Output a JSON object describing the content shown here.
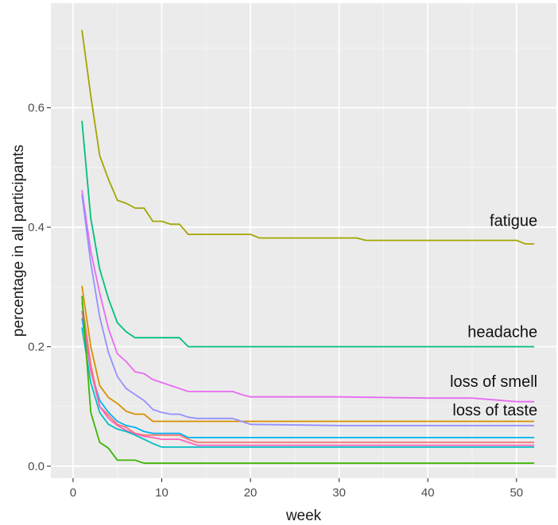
{
  "chart_data": {
    "type": "line",
    "title": "",
    "xlabel": "week",
    "ylabel": "percentage in all participants",
    "xlim": [
      -2.5,
      54.5
    ],
    "ylim": [
      -0.02,
      0.775
    ],
    "x_ticks": [
      0,
      10,
      20,
      30,
      40,
      50
    ],
    "y_ticks": [
      0.0,
      0.2,
      0.4,
      0.6
    ],
    "x_tick_labels": [
      "0",
      "10",
      "20",
      "30",
      "40",
      "50"
    ],
    "y_tick_labels": [
      "0.0",
      "0.2",
      "0.4",
      "0.6"
    ],
    "grid": true,
    "legend": "none",
    "series": [
      {
        "name": "fatigue",
        "color": "#a3a500",
        "x": [
          1,
          2,
          3,
          4,
          5,
          6,
          7,
          8,
          9,
          10,
          11,
          12,
          13,
          14,
          15,
          16,
          17,
          18,
          19,
          20,
          21,
          25,
          30,
          32,
          33,
          40,
          45,
          50,
          51,
          52
        ],
        "y": [
          0.73,
          0.62,
          0.52,
          0.48,
          0.445,
          0.44,
          0.432,
          0.432,
          0.41,
          0.41,
          0.405,
          0.405,
          0.388,
          0.388,
          0.388,
          0.388,
          0.388,
          0.388,
          0.388,
          0.388,
          0.382,
          0.382,
          0.382,
          0.382,
          0.378,
          0.378,
          0.378,
          0.378,
          0.372,
          0.372
        ]
      },
      {
        "name": "headache",
        "color": "#00bf7d",
        "x": [
          1,
          2,
          3,
          4,
          5,
          6,
          7,
          8,
          9,
          10,
          11,
          12,
          13,
          14,
          20,
          30,
          40,
          52
        ],
        "y": [
          0.578,
          0.415,
          0.33,
          0.28,
          0.24,
          0.225,
          0.215,
          0.215,
          0.215,
          0.215,
          0.215,
          0.215,
          0.2,
          0.2,
          0.2,
          0.2,
          0.2,
          0.2
        ]
      },
      {
        "name": "loss of smell",
        "color": "#e76bf3",
        "x": [
          1,
          2,
          3,
          4,
          5,
          6,
          7,
          8,
          9,
          10,
          11,
          12,
          13,
          14,
          15,
          18,
          19,
          20,
          25,
          30,
          40,
          45,
          50,
          52
        ],
        "y": [
          0.462,
          0.36,
          0.29,
          0.23,
          0.188,
          0.175,
          0.158,
          0.155,
          0.145,
          0.14,
          0.135,
          0.13,
          0.125,
          0.125,
          0.125,
          0.125,
          0.12,
          0.116,
          0.116,
          0.116,
          0.114,
          0.114,
          0.108,
          0.108
        ]
      },
      {
        "name": "loss of taste",
        "color": "#d89000",
        "x": [
          1,
          2,
          3,
          4,
          5,
          6,
          7,
          8,
          9,
          10,
          20,
          30,
          40,
          52
        ],
        "y": [
          0.302,
          0.2,
          0.135,
          0.115,
          0.105,
          0.092,
          0.087,
          0.087,
          0.075,
          0.075,
          0.075,
          0.075,
          0.075,
          0.075
        ]
      },
      {
        "name": "",
        "color": "#9590ff",
        "x": [
          1,
          2,
          3,
          4,
          5,
          6,
          7,
          8,
          9,
          10,
          11,
          12,
          13,
          14,
          18,
          19,
          20,
          30,
          40,
          52
        ],
        "y": [
          0.455,
          0.34,
          0.25,
          0.19,
          0.15,
          0.13,
          0.12,
          0.11,
          0.095,
          0.09,
          0.087,
          0.087,
          0.082,
          0.08,
          0.08,
          0.075,
          0.07,
          0.068,
          0.068,
          0.068
        ]
      },
      {
        "name": "",
        "color": "#00b0f6",
        "x": [
          1,
          2,
          3,
          4,
          5,
          6,
          7,
          8,
          9,
          10,
          12,
          13,
          20,
          30,
          40,
          52
        ],
        "y": [
          0.248,
          0.16,
          0.11,
          0.09,
          0.075,
          0.068,
          0.065,
          0.058,
          0.055,
          0.055,
          0.055,
          0.048,
          0.048,
          0.048,
          0.048,
          0.048
        ]
      },
      {
        "name": "",
        "color": "#f8766d",
        "x": [
          1,
          2,
          3,
          4,
          5,
          6,
          7,
          8,
          9,
          10,
          12,
          13,
          14,
          20,
          30,
          40,
          52
        ],
        "y": [
          0.275,
          0.17,
          0.1,
          0.085,
          0.07,
          0.065,
          0.055,
          0.052,
          0.052,
          0.052,
          0.052,
          0.045,
          0.04,
          0.04,
          0.04,
          0.04,
          0.04
        ]
      },
      {
        "name": "",
        "color": "#ff62bc",
        "x": [
          1,
          2,
          3,
          4,
          5,
          6,
          7,
          8,
          9,
          10,
          12,
          13,
          14,
          20,
          30,
          40,
          52
        ],
        "y": [
          0.26,
          0.16,
          0.1,
          0.08,
          0.068,
          0.06,
          0.054,
          0.05,
          0.048,
          0.045,
          0.045,
          0.04,
          0.035,
          0.035,
          0.035,
          0.035,
          0.035
        ]
      },
      {
        "name": "",
        "color": "#00bfc4",
        "x": [
          1,
          2,
          3,
          4,
          5,
          6,
          7,
          8,
          9,
          10,
          20,
          30,
          40,
          52
        ],
        "y": [
          0.232,
          0.14,
          0.09,
          0.07,
          0.062,
          0.058,
          0.052,
          0.045,
          0.038,
          0.032,
          0.032,
          0.032,
          0.032,
          0.032
        ]
      },
      {
        "name": "",
        "color": "#39b600",
        "x": [
          1,
          2,
          3,
          4,
          5,
          6,
          7,
          8,
          9,
          10,
          20,
          30,
          40,
          52
        ],
        "y": [
          0.285,
          0.09,
          0.04,
          0.03,
          0.01,
          0.01,
          0.01,
          0.005,
          0.005,
          0.005,
          0.005,
          0.005,
          0.005,
          0.005
        ]
      }
    ],
    "annotations": [
      {
        "text": "fatigue",
        "x": 52,
        "y": 0.402,
        "anchor": "end"
      },
      {
        "text": "headache",
        "x": 52,
        "y": 0.216,
        "anchor": "end"
      },
      {
        "text": "loss of smell",
        "x": 52,
        "y": 0.133,
        "anchor": "end"
      },
      {
        "text": "loss of taste",
        "x": 52,
        "y": 0.085,
        "anchor": "end"
      }
    ]
  }
}
